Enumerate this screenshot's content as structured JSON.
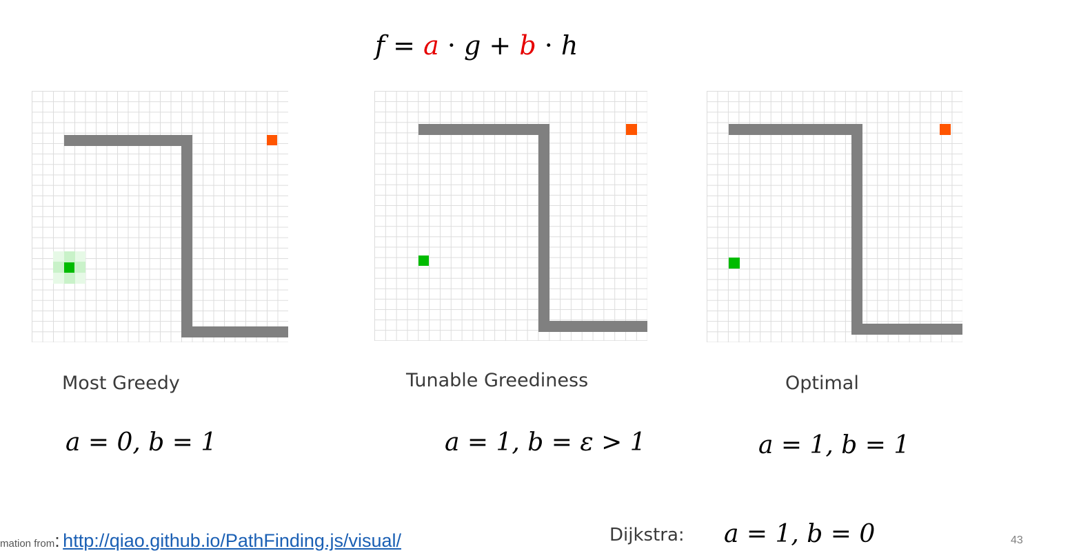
{
  "formula": {
    "lhs": "f",
    "eq": " = ",
    "a": "a",
    "dot1": " · ",
    "g": "g",
    "plus": " + ",
    "b": "b",
    "dot2": " · ",
    "h": "h"
  },
  "panels": [
    {
      "label": "Most Greedy",
      "params": "a = 0, b = 1"
    },
    {
      "label": "Tunable Greediness",
      "params": "a = 1, b = ε > 1"
    },
    {
      "label": "Optimal",
      "params": "a = 1, b = 1"
    }
  ],
  "dijkstra": {
    "label": "Dijkstra",
    "colon": ":",
    "params": "a = 1, b = 0"
  },
  "footer": {
    "prefix": "mation from",
    "colon": ":",
    "link": "http://qiao.github.io/PathFinding.js/visual/"
  },
  "page_number": "43",
  "colors": {
    "wall": "#808080",
    "start": "#00bb00",
    "goal": "#ff5500",
    "explored": "#c6f2c6",
    "accent_red": "#e60000",
    "link": "#1a5fb4"
  }
}
